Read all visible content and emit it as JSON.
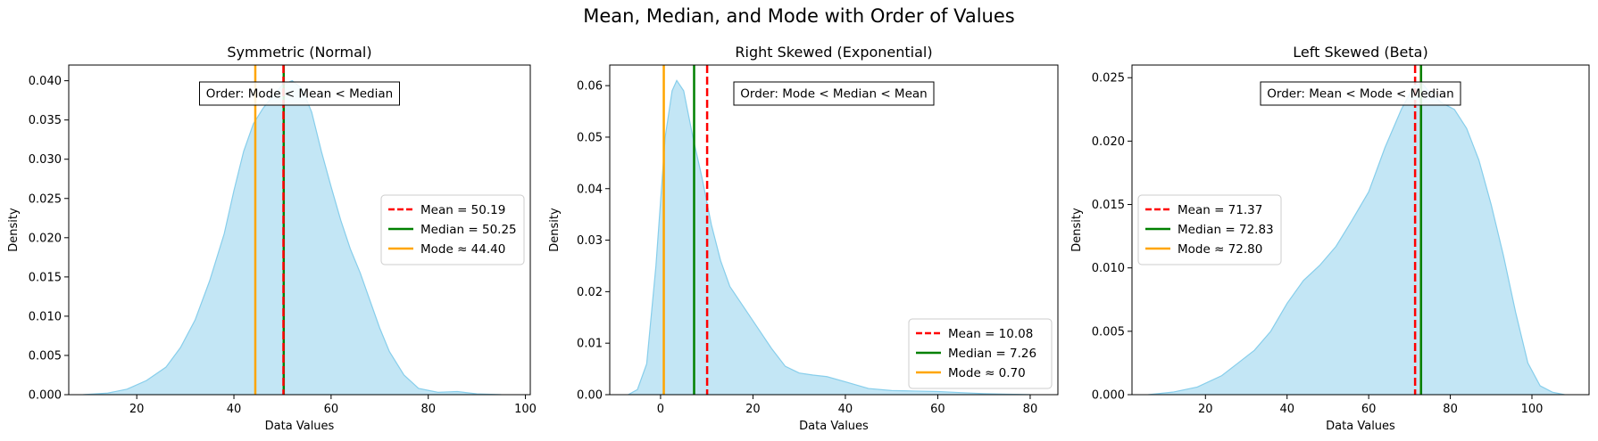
{
  "figure": {
    "suptitle": "Mean, Median, and Mode with Order of Values"
  },
  "colors": {
    "fill": "#87ceeb",
    "mean": "#ff0000",
    "median": "#008000",
    "mode": "#ffa500"
  },
  "chart_data": [
    {
      "type": "area",
      "title": "Symmetric (Normal)",
      "xlabel": "Data Values",
      "ylabel": "Density",
      "xlim": [
        6,
        101
      ],
      "ylim": [
        0,
        0.042
      ],
      "xticks": [
        20,
        40,
        60,
        80,
        100
      ],
      "yticks": [
        0.0,
        0.005,
        0.01,
        0.015,
        0.02,
        0.025,
        0.03,
        0.035,
        0.04
      ],
      "ytick_decimals": 3,
      "x": [
        9,
        14,
        18,
        22,
        26,
        29,
        32,
        35,
        38,
        40,
        42,
        44,
        46,
        48,
        50,
        52,
        54,
        56,
        58,
        60,
        62,
        64,
        66,
        68,
        70,
        72,
        75,
        78,
        82,
        86,
        90,
        95
      ],
      "y": [
        0,
        0.0002,
        0.0007,
        0.0018,
        0.0035,
        0.006,
        0.0095,
        0.0145,
        0.0205,
        0.026,
        0.031,
        0.0345,
        0.0365,
        0.038,
        0.0395,
        0.04,
        0.039,
        0.036,
        0.031,
        0.0265,
        0.0222,
        0.0185,
        0.0155,
        0.012,
        0.0085,
        0.0055,
        0.0025,
        0.0008,
        0.0003,
        0.0004,
        0.0001,
        0
      ],
      "stats": {
        "mean": 50.19,
        "median": 50.25,
        "mode": 44.4
      },
      "legend": {
        "placement": "center-right",
        "entries": [
          "Mean = 50.19",
          "Median = 50.25",
          "Mode ≈ 44.40"
        ]
      },
      "annotation": {
        "text": "Order: Mode < Mean < Median",
        "placement": "top-center"
      }
    },
    {
      "type": "area",
      "title": "Right Skewed (Exponential)",
      "xlabel": "Data Values",
      "ylabel": "Density",
      "xlim": [
        -11,
        86
      ],
      "ylim": [
        0,
        0.064
      ],
      "xticks": [
        0,
        20,
        40,
        60,
        80
      ],
      "yticks": [
        0.0,
        0.01,
        0.02,
        0.03,
        0.04,
        0.05,
        0.06
      ],
      "ytick_decimals": 2,
      "x": [
        -7,
        -5,
        -3,
        -1,
        1,
        2.5,
        3.5,
        5,
        7,
        9,
        11,
        13,
        15,
        18,
        21,
        24,
        27,
        30,
        33,
        36,
        40,
        45,
        50,
        55,
        60,
        65,
        70,
        75,
        80
      ],
      "y": [
        0,
        0.001,
        0.006,
        0.025,
        0.05,
        0.059,
        0.061,
        0.059,
        0.05,
        0.042,
        0.033,
        0.026,
        0.021,
        0.017,
        0.013,
        0.009,
        0.0055,
        0.0042,
        0.0038,
        0.0035,
        0.0025,
        0.0012,
        0.0008,
        0.0007,
        0.0006,
        0.0004,
        0.0002,
        0.0001,
        0
      ],
      "stats": {
        "mean": 10.08,
        "median": 7.26,
        "mode": 0.7
      },
      "legend": {
        "placement": "lower-right",
        "entries": [
          "Mean = 10.08",
          "Median = 7.26",
          "Mode ≈ 0.70"
        ]
      },
      "annotation": {
        "text": "Order: Mode < Median < Mean",
        "placement": "top-center"
      }
    },
    {
      "type": "area",
      "title": "Left Skewed (Beta)",
      "xlabel": "Data Values",
      "ylabel": "Density",
      "xlim": [
        2,
        114
      ],
      "ylim": [
        0,
        0.026
      ],
      "xticks": [
        20,
        40,
        60,
        80,
        100
      ],
      "yticks": [
        0.0,
        0.005,
        0.01,
        0.015,
        0.02,
        0.025
      ],
      "ytick_decimals": 3,
      "x": [
        6,
        12,
        18,
        24,
        28,
        32,
        36,
        40,
        44,
        48,
        52,
        56,
        60,
        64,
        68,
        71,
        73,
        75,
        78,
        81,
        84,
        87,
        90,
        93,
        96,
        99,
        102,
        105,
        108
      ],
      "y": [
        0,
        0.0002,
        0.0006,
        0.0015,
        0.0025,
        0.0035,
        0.005,
        0.0072,
        0.009,
        0.0102,
        0.0117,
        0.0138,
        0.016,
        0.0195,
        0.0225,
        0.0243,
        0.0246,
        0.0238,
        0.023,
        0.0225,
        0.021,
        0.0185,
        0.015,
        0.011,
        0.0065,
        0.0025,
        0.0007,
        0.0002,
        0
      ],
      "stats": {
        "mean": 71.37,
        "median": 72.83,
        "mode": 72.8
      },
      "legend": {
        "placement": "center-left",
        "entries": [
          "Mean = 71.37",
          "Median = 72.83",
          "Mode ≈ 72.80"
        ]
      },
      "annotation": {
        "text": "Order: Mean < Mode < Median",
        "placement": "top-center"
      }
    }
  ]
}
